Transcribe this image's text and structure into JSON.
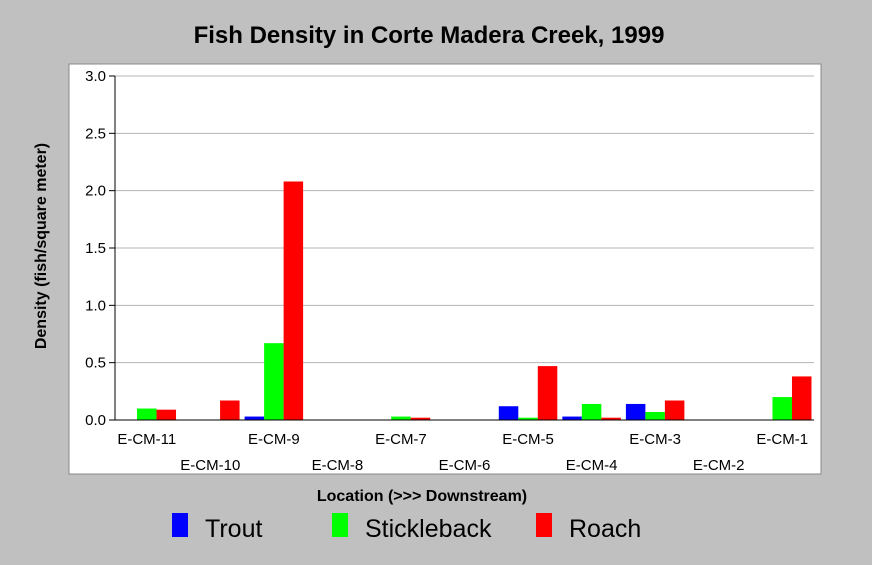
{
  "chart_data": {
    "type": "bar",
    "title": "Fish Density in Corte Madera Creek, 1999",
    "xlabel": "Location (>>> Downstream)",
    "ylabel": "Density (fish/square meter)",
    "ylim": [
      0,
      3.0
    ],
    "yticks": [
      "0.0",
      "0.5",
      "1.0",
      "1.5",
      "2.0",
      "2.5",
      "3.0"
    ],
    "grid": true,
    "legend_position": "bottom",
    "categories": [
      "E-CM-11",
      "E-CM-10",
      "E-CM-9",
      "E-CM-8",
      "E-CM-7",
      "E-CM-6",
      "E-CM-5",
      "E-CM-4",
      "E-CM-3",
      "E-CM-2",
      "E-CM-1"
    ],
    "series": [
      {
        "name": "Trout",
        "color": "#0000ff",
        "values": [
          0,
          0,
          0.03,
          0,
          0,
          0,
          0.12,
          0.03,
          0.14,
          0,
          0
        ]
      },
      {
        "name": "Stickleback",
        "color": "#00ff00",
        "values": [
          0.1,
          0,
          0.67,
          0,
          0.03,
          0,
          0.02,
          0.14,
          0.07,
          0,
          0.2
        ]
      },
      {
        "name": "Roach",
        "color": "#ff0000",
        "values": [
          0.09,
          0.17,
          2.08,
          0,
          0.02,
          0,
          0.47,
          0.02,
          0.17,
          0,
          0.38
        ]
      }
    ]
  }
}
